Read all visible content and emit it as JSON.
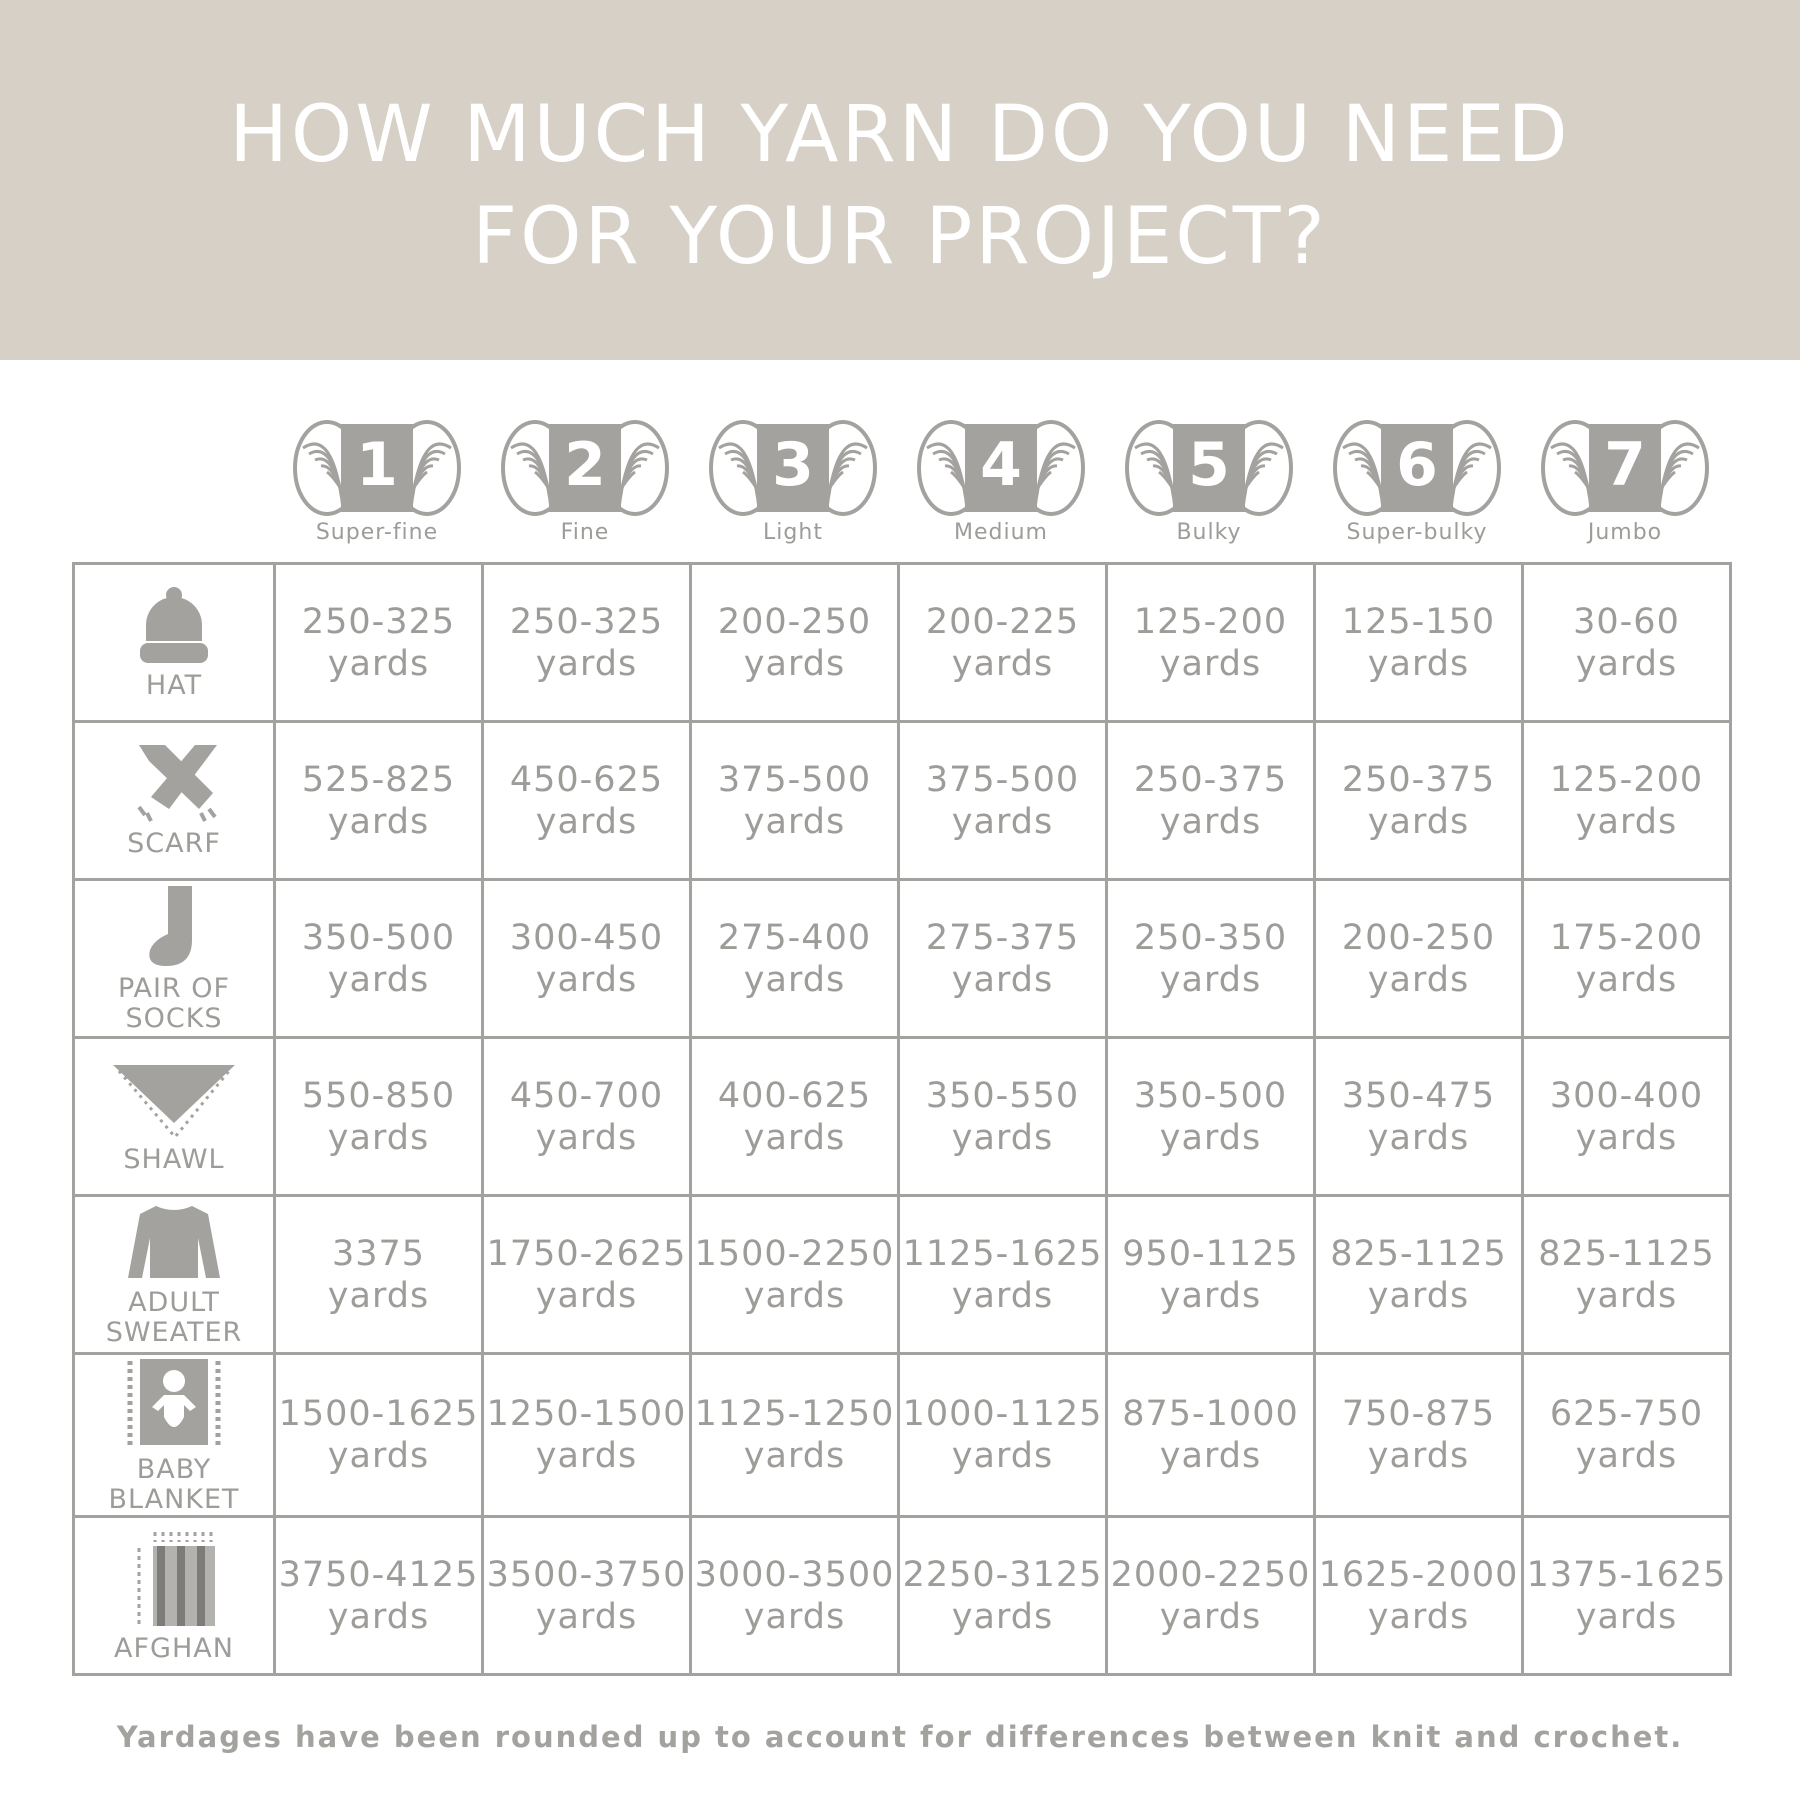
{
  "header": {
    "title_line1": "HOW MUCH YARN DO YOU NEED",
    "title_line2": "FOR YOUR PROJECT?",
    "background": "#d7d0c7"
  },
  "weights": [
    {
      "number": "1",
      "name": "Super-fine"
    },
    {
      "number": "2",
      "name": "Fine"
    },
    {
      "number": "3",
      "name": "Light"
    },
    {
      "number": "4",
      "name": "Medium"
    },
    {
      "number": "5",
      "name": "Bulky"
    },
    {
      "number": "6",
      "name": "Super-bulky"
    },
    {
      "number": "7",
      "name": "Jumbo"
    }
  ],
  "unit": "yards",
  "rows": [
    {
      "project": "HAT",
      "icon": "hat-icon",
      "values": [
        "250-325",
        "250-325",
        "200-250",
        "200-225",
        "125-200",
        "125-150",
        "30-60"
      ]
    },
    {
      "project": "SCARF",
      "icon": "scarf-icon",
      "values": [
        "525-825",
        "450-625",
        "375-500",
        "375-500",
        "250-375",
        "250-375",
        "125-200"
      ]
    },
    {
      "project": "PAIR OF SOCKS",
      "icon": "sock-icon",
      "values": [
        "350-500",
        "300-450",
        "275-400",
        "275-375",
        "250-350",
        "200-250",
        "175-200"
      ]
    },
    {
      "project": "SHAWL",
      "icon": "shawl-icon",
      "values": [
        "550-850",
        "450-700",
        "400-625",
        "350-550",
        "350-500",
        "350-475",
        "300-400"
      ]
    },
    {
      "project": "ADULT SWEATER",
      "icon": "sweater-icon",
      "values": [
        "3375",
        "1750-2625",
        "1500-2250",
        "1125-1625",
        "950-1125",
        "825-1125",
        "825-1125"
      ]
    },
    {
      "project": "BABY BLANKET",
      "icon": "baby-blanket-icon",
      "values": [
        "1500-1625",
        "1250-1500",
        "1125-1250",
        "1000-1125",
        "875-1000",
        "750-875",
        "625-750"
      ]
    },
    {
      "project": "AFGHAN",
      "icon": "afghan-icon",
      "values": [
        "3750-4125",
        "3500-3750",
        "3000-3500",
        "2250-3125",
        "2000-2250",
        "1625-2000",
        "1375-1625"
      ]
    }
  ],
  "footer": "Yardages have been rounded up to account for differences between knit and crochet.",
  "colors": {
    "text": "#9d9c99",
    "grid": "#a3a29f"
  }
}
